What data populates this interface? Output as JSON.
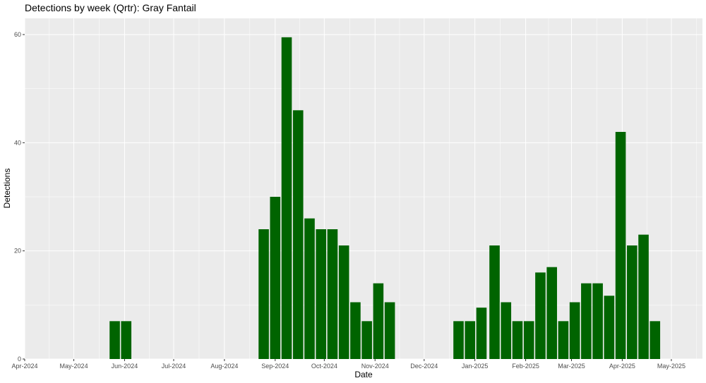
{
  "chart_data": {
    "type": "bar",
    "title": "Detections by week (Qrtr): Gray Fantail",
    "xlabel": "Date",
    "ylabel": "Detections",
    "ylim": [
      0,
      63
    ],
    "yticks": [
      0,
      20,
      40,
      60
    ],
    "xlim": [
      "2024-04-01",
      "2025-05-20"
    ],
    "xticks": [
      {
        "date": "2024-04-01",
        "label": "Apr-2024"
      },
      {
        "date": "2024-05-01",
        "label": "May-2024"
      },
      {
        "date": "2024-06-01",
        "label": "Jun-2024"
      },
      {
        "date": "2024-07-01",
        "label": "Jul-2024"
      },
      {
        "date": "2024-08-01",
        "label": "Aug-2024"
      },
      {
        "date": "2024-09-01",
        "label": "Sep-2024"
      },
      {
        "date": "2024-10-01",
        "label": "Oct-2024"
      },
      {
        "date": "2024-11-01",
        "label": "Nov-2024"
      },
      {
        "date": "2024-12-01",
        "label": "Dec-2024"
      },
      {
        "date": "2025-01-01",
        "label": "Jan-2025"
      },
      {
        "date": "2025-02-01",
        "label": "Feb-2025"
      },
      {
        "date": "2025-03-01",
        "label": "Mar-2025"
      },
      {
        "date": "2025-04-01",
        "label": "Apr-2025"
      },
      {
        "date": "2025-05-01",
        "label": "May-2025"
      }
    ],
    "bar_color": "#006400",
    "panel_background": "#ebebeb",
    "grid": true,
    "x": [
      "2024-05-26",
      "2024-06-02",
      "2024-08-25",
      "2024-09-01",
      "2024-09-08",
      "2024-09-15",
      "2024-09-22",
      "2024-09-29",
      "2024-10-06",
      "2024-10-13",
      "2024-10-20",
      "2024-10-27",
      "2024-11-03",
      "2024-11-10",
      "2024-12-22",
      "2024-12-29",
      "2025-01-05",
      "2025-01-13",
      "2025-01-20",
      "2025-01-27",
      "2025-02-03",
      "2025-02-10",
      "2025-02-17",
      "2025-02-24",
      "2025-03-03",
      "2025-03-10",
      "2025-03-17",
      "2025-03-24",
      "2025-03-31",
      "2025-04-07",
      "2025-04-14",
      "2025-04-21"
    ],
    "values": [
      7,
      7,
      24,
      30,
      59.5,
      46,
      26,
      24,
      24,
      21,
      10.5,
      7,
      14,
      10.5,
      7,
      7,
      9.5,
      21,
      10.5,
      7,
      7,
      16,
      17,
      7,
      10.5,
      14,
      14,
      11.7,
      42,
      21,
      23,
      7
    ]
  }
}
